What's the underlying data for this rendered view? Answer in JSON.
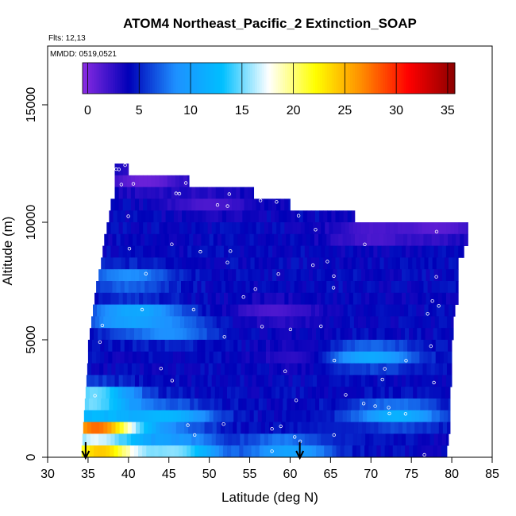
{
  "chart_data": {
    "type": "heatmap",
    "title": "ATOM4 Northeast_Pacific_2 Extinction_SOAP",
    "flights_label": "Flts: 12,13",
    "dates_label": "MMDD: 0519,0521",
    "xlabel": "Latitude (deg N)",
    "ylabel": "Altitude (m)",
    "xlim": [
      30,
      85
    ],
    "ylim": [
      0,
      17500
    ],
    "x_ticks": [
      30,
      35,
      40,
      45,
      50,
      55,
      60,
      65,
      70,
      75,
      80,
      85
    ],
    "y_ticks": [
      0,
      5000,
      10000,
      15000
    ],
    "x_tick_labels": [
      "30",
      "35",
      "40",
      "45",
      "50",
      "55",
      "60",
      "65",
      "70",
      "75",
      "80",
      "85"
    ],
    "y_tick_labels": [
      "0",
      "5000",
      "10000",
      "15000"
    ],
    "colorbar": {
      "range": [
        -0.5,
        35.7
      ],
      "ticks": [
        0,
        5,
        10,
        15,
        20,
        25,
        30,
        35
      ],
      "tick_labels": [
        "0",
        "5",
        "10",
        "15",
        "20",
        "25",
        "30",
        "35"
      ],
      "colors": [
        "#8a2be2",
        "#0000b8",
        "#1e90ff",
        "#00bfff",
        "#ffffff",
        "#ffff00",
        "#ff8c00",
        "#ff0000",
        "#8b0000"
      ]
    },
    "arrows_latitude": [
      34.7,
      61.2
    ],
    "profile": [
      [
        12250,
        38.3,
        40.0
      ],
      [
        11750,
        38.3,
        47.5
      ],
      [
        11250,
        38.3,
        55.5
      ],
      [
        10750,
        37.8,
        60.0
      ],
      [
        10250,
        37.6,
        68.0
      ],
      [
        9750,
        37.3,
        82.0
      ],
      [
        9250,
        37.0,
        82.0
      ],
      [
        8750,
        36.8,
        81.5
      ],
      [
        8250,
        36.6,
        80.8
      ],
      [
        7750,
        36.3,
        80.8
      ],
      [
        7250,
        36.0,
        80.8
      ],
      [
        6750,
        35.8,
        80.8
      ],
      [
        6250,
        35.6,
        80.4
      ],
      [
        5750,
        35.4,
        80.2
      ],
      [
        5250,
        35.2,
        80.2
      ],
      [
        4750,
        35.0,
        80.0
      ],
      [
        4250,
        35.0,
        80.0
      ],
      [
        3750,
        34.9,
        80.0
      ],
      [
        3250,
        34.8,
        80.0
      ],
      [
        2750,
        34.7,
        79.8
      ],
      [
        2250,
        34.6,
        79.8
      ],
      [
        1750,
        34.5,
        79.8
      ],
      [
        1250,
        34.4,
        79.8
      ],
      [
        750,
        34.3,
        79.6
      ],
      [
        250,
        34.2,
        79.4
      ]
    ],
    "features": [
      {
        "lat": 42,
        "alt": 11800,
        "value": 0.5
      },
      {
        "lat": 50,
        "alt": 10800,
        "value": 1.5
      },
      {
        "lat": 70,
        "alt": 9500,
        "value": 1.0
      },
      {
        "lat": 78,
        "alt": 9700,
        "value": 1.0
      },
      {
        "lat": 58,
        "alt": 6200,
        "value": 1.5
      },
      {
        "lat": 62,
        "alt": 4300,
        "value": 2.0
      },
      {
        "lat": 41,
        "alt": 6000,
        "value": 13.0
      },
      {
        "lat": 40,
        "alt": 7600,
        "value": 9.0
      },
      {
        "lat": 45,
        "alt": 5400,
        "value": 9.0
      },
      {
        "lat": 70,
        "alt": 4300,
        "value": 11.0
      },
      {
        "lat": 73,
        "alt": 1800,
        "value": 12.0
      },
      {
        "lat": 45,
        "alt": 1700,
        "value": 12.0
      },
      {
        "lat": 46,
        "alt": 300,
        "value": 15.0
      },
      {
        "lat": 60,
        "alt": 400,
        "value": 11.0
      },
      {
        "lat": 36,
        "alt": 1200,
        "value": 28.0
      },
      {
        "lat": 35.5,
        "alt": 2500,
        "value": 18.0
      },
      {
        "lat": 36.5,
        "alt": 100,
        "value": 26.0
      },
      {
        "lat": 66,
        "alt": 1100,
        "value": 5.0
      }
    ],
    "grid": false,
    "legend": "top (horizontal colorbar inside plot)"
  }
}
